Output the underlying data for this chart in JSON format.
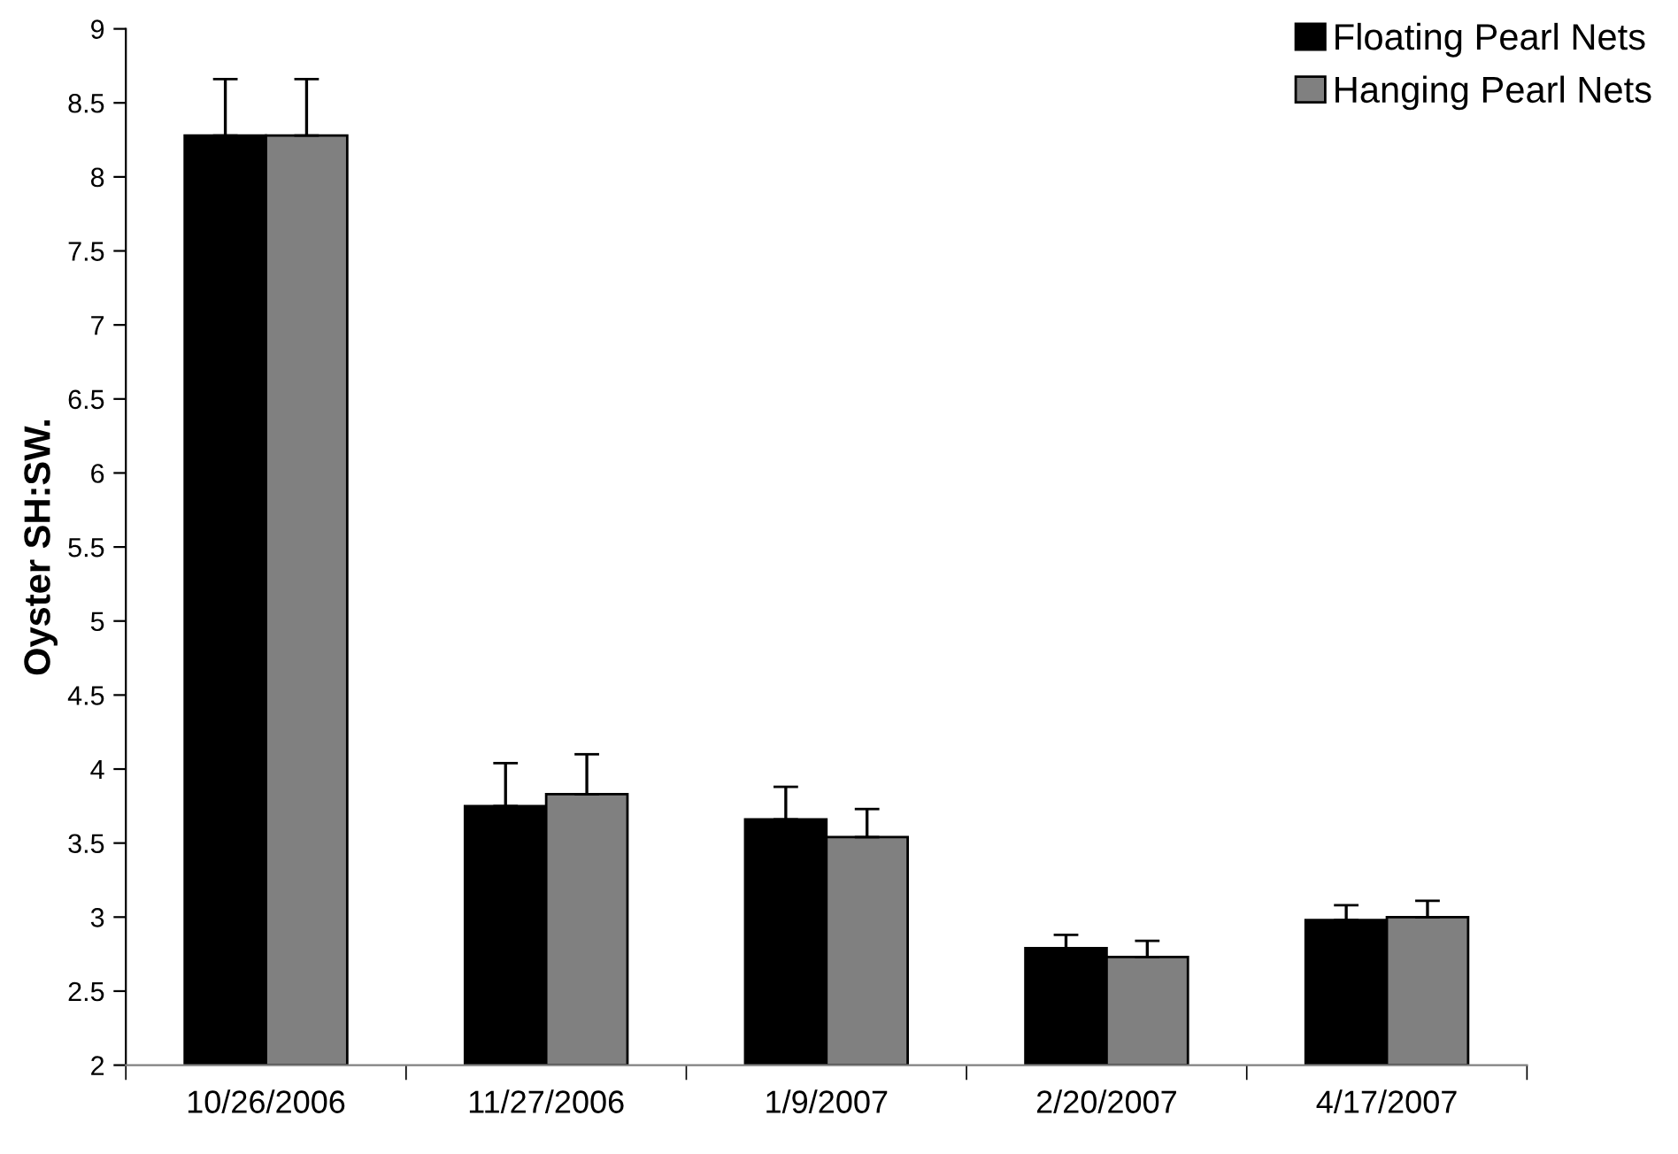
{
  "chart_data": {
    "type": "bar",
    "ylabel": "Oyster SH:SW.",
    "categories": [
      "10/26/2006",
      "11/27/2006",
      "1/9/2007",
      "2/20/2007",
      "4/17/2007"
    ],
    "series": [
      {
        "name": "Floating Pearl Nets",
        "color": "#000000",
        "values": [
          8.28,
          3.75,
          3.66,
          2.79,
          2.98
        ],
        "errors": [
          0.38,
          0.29,
          0.22,
          0.09,
          0.1
        ]
      },
      {
        "name": "Hanging Pearl Nets",
        "color": "#808080",
        "values": [
          8.28,
          3.83,
          3.54,
          2.73,
          3.0
        ],
        "errors": [
          0.38,
          0.27,
          0.19,
          0.11,
          0.11
        ]
      }
    ],
    "ylim": [
      2,
      9
    ],
    "yticks": [
      2,
      2.5,
      3,
      3.5,
      4,
      4.5,
      5,
      5.5,
      6,
      6.5,
      7,
      7.5,
      8,
      8.5,
      9
    ],
    "grid": false,
    "legend": "top right"
  }
}
